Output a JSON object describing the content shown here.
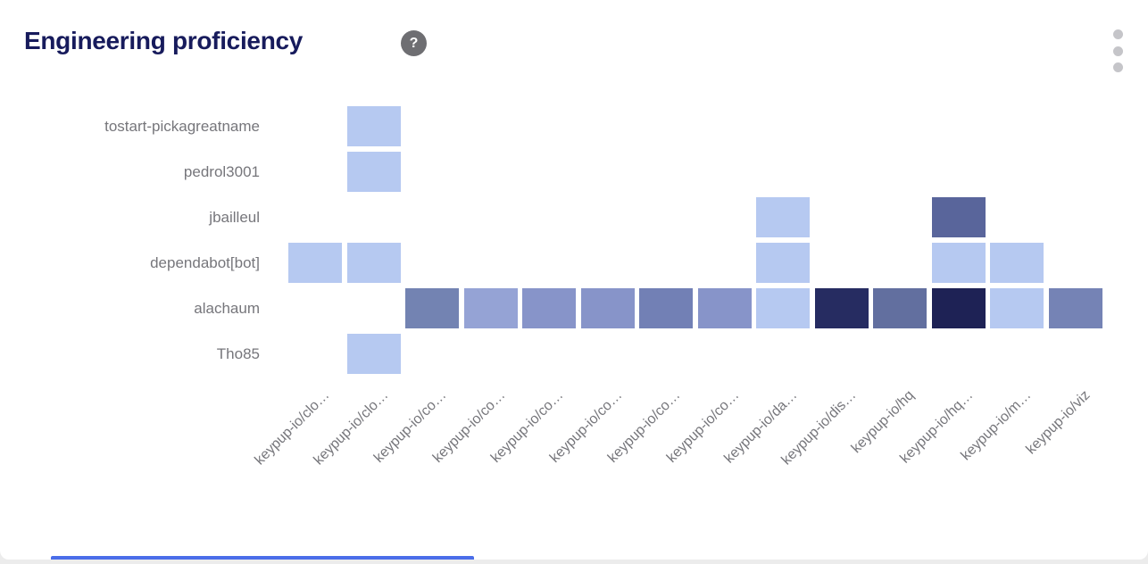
{
  "header": {
    "title": "Engineering proficiency",
    "help_glyph": "?",
    "menu_icon": "kebab-vertical"
  },
  "palette": {
    "title_color": "#171b5c",
    "axis_label_color": "#76767b",
    "help_icon_bg": "#6e6e72",
    "menu_dot_color": "#c5c5c9",
    "page_background": "#ececec",
    "card_background": "#ffffff",
    "next_card_accent": "#4a6de9",
    "cell_light": "#b6c9f1",
    "cell_darkest": "#1e2255"
  },
  "chart_data": {
    "type": "heatmap",
    "title": "Engineering proficiency",
    "rows": [
      "tostart-pickagreatname",
      "pedrol3001",
      "jbailleul",
      "dependabot[bot]",
      "alachaum",
      "Tho85"
    ],
    "columns": [
      "keypup-io/clo…",
      "keypup-io/clo…",
      "keypup-io/co…",
      "keypup-io/co…",
      "keypup-io/co…",
      "keypup-io/co…",
      "keypup-io/co…",
      "keypup-io/co…",
      "keypup-io/da…",
      "keypup-io/dis…",
      "keypup-io/hq",
      "keypup-io/hq…",
      "keypup-io/m…",
      "keypup-io/viz"
    ],
    "legend": "none",
    "grid": "off",
    "x_axis_label_rotation_deg": 45,
    "cells": [
      {
        "row": 0,
        "col": 1,
        "color": "#b6c9f1"
      },
      {
        "row": 1,
        "col": 1,
        "color": "#b6c9f1"
      },
      {
        "row": 2,
        "col": 8,
        "color": "#b6c9f1"
      },
      {
        "row": 2,
        "col": 11,
        "color": "#59659b"
      },
      {
        "row": 3,
        "col": 0,
        "color": "#b6c9f1"
      },
      {
        "row": 3,
        "col": 1,
        "color": "#b6c9f1"
      },
      {
        "row": 3,
        "col": 8,
        "color": "#b6c9f1"
      },
      {
        "row": 3,
        "col": 11,
        "color": "#b6c9f1"
      },
      {
        "row": 3,
        "col": 12,
        "color": "#b6c9f1"
      },
      {
        "row": 4,
        "col": 2,
        "color": "#7383b2"
      },
      {
        "row": 4,
        "col": 3,
        "color": "#95a3d5"
      },
      {
        "row": 4,
        "col": 4,
        "color": "#8794c9"
      },
      {
        "row": 4,
        "col": 5,
        "color": "#8794c9"
      },
      {
        "row": 4,
        "col": 6,
        "color": "#7280b5"
      },
      {
        "row": 4,
        "col": 7,
        "color": "#8794c9"
      },
      {
        "row": 4,
        "col": 8,
        "color": "#b6c9f1"
      },
      {
        "row": 4,
        "col": 9,
        "color": "#262c61"
      },
      {
        "row": 4,
        "col": 10,
        "color": "#626f9f"
      },
      {
        "row": 4,
        "col": 11,
        "color": "#1e2255"
      },
      {
        "row": 4,
        "col": 12,
        "color": "#b6c9f1"
      },
      {
        "row": 4,
        "col": 13,
        "color": "#7583b5"
      },
      {
        "row": 5,
        "col": 1,
        "color": "#b6c9f1"
      }
    ]
  }
}
